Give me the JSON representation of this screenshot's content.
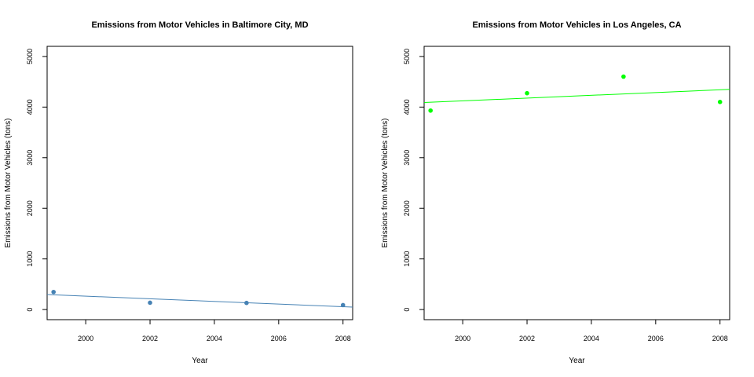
{
  "chart_data": [
    {
      "type": "scatter",
      "title": "Emissions from Motor Vehicles in Baltimore City, MD",
      "xlabel": "Year",
      "ylabel": "Emissions from Motor Vehicles (tons)",
      "xlim": [
        1998.8,
        2008.3
      ],
      "ylim": [
        -200,
        5200
      ],
      "x_ticks": [
        "2000",
        "2002",
        "2004",
        "2006",
        "2008"
      ],
      "y_ticks": [
        "0",
        "1000",
        "2000",
        "3000",
        "4000",
        "5000"
      ],
      "grid": false,
      "color": "#4682b4",
      "series": [
        {
          "x": [
            1999,
            2002,
            2005,
            2008
          ],
          "y": [
            346.8,
            134.3,
            130.4,
            88.3
          ]
        }
      ],
      "trend_line": {
        "x": [
          1998.8,
          2008.3
        ],
        "y": [
          296,
          48
        ]
      }
    },
    {
      "type": "scatter",
      "title": "Emissions from Motor Vehicles in Los Angeles, CA",
      "xlabel": "Year",
      "ylabel": "Emissions from Motor Vehicles (tons)",
      "xlim": [
        1998.8,
        2008.3
      ],
      "ylim": [
        -200,
        5200
      ],
      "x_ticks": [
        "2000",
        "2002",
        "2004",
        "2006",
        "2008"
      ],
      "y_ticks": [
        "0",
        "1000",
        "2000",
        "3000",
        "4000",
        "5000"
      ],
      "grid": false,
      "color": "#00ff00",
      "series": [
        {
          "x": [
            1999,
            2002,
            2005,
            2008
          ],
          "y": [
            3931,
            4274,
            4601,
            4101
          ]
        }
      ],
      "trend_line": {
        "x": [
          1998.8,
          2008.3
        ],
        "y": [
          4090,
          4350
        ]
      }
    }
  ]
}
